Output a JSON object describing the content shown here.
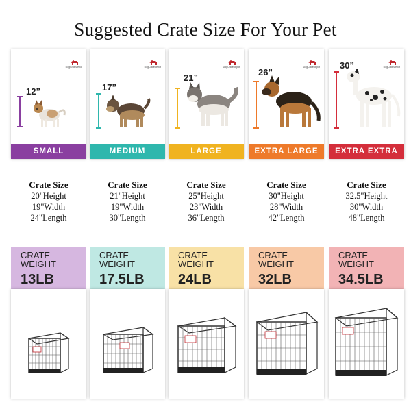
{
  "title": "Suggested Crate Size For Your Pet",
  "brand": "DogCrateDepot",
  "sizes": [
    {
      "name": "SMALL",
      "height_label": "12”",
      "color": "#8a3fa0",
      "weight_bg": "#d6b7e0",
      "crate_header": "Crate Size",
      "height": "20\"Height",
      "width": "19\"Width",
      "length": "24\"Length",
      "weight_label_1": "CRATE",
      "weight_label_2": "WEIGHT",
      "weight": "13LB"
    },
    {
      "name": "MEDIUM",
      "height_label": "17”",
      "color": "#2fb7ad",
      "weight_bg": "#bfe8e3",
      "crate_header": "Crate Size",
      "height": "21\"Height",
      "width": "19\"Width",
      "length": "30\"Length",
      "weight_label_1": "CRATE",
      "weight_label_2": "WEIGHT",
      "weight": "17.5LB"
    },
    {
      "name": "LARGE",
      "height_label": "21”",
      "color": "#f0b320",
      "weight_bg": "#f8e1a6",
      "crate_header": "Crate Size",
      "height": "25\"Height",
      "width": "23\"Width",
      "length": "36\"Length",
      "weight_label_1": "CRATE",
      "weight_label_2": "WEIGHT",
      "weight": "24LB"
    },
    {
      "name": "EXTRA LARGE",
      "height_label": "26”",
      "color": "#ee7a2a",
      "weight_bg": "#f8c9a6",
      "crate_header": "Crate Size",
      "height": "30\"Height",
      "width": "28\"Width",
      "length": "42\"Length",
      "weight_label_1": "CRATE",
      "weight_label_2": "WEIGHT",
      "weight": "32LB"
    },
    {
      "name": "EXTRA EXTRA",
      "height_label": "30”",
      "color": "#d42e3b",
      "weight_bg": "#f2b3b5",
      "crate_header": "Crate Size",
      "height": "32.5\"Height",
      "width": "30\"Width",
      "length": "48\"Length",
      "weight_label_1": "CRATE",
      "weight_label_2": "WEIGHT",
      "weight": "34.5LB"
    }
  ]
}
